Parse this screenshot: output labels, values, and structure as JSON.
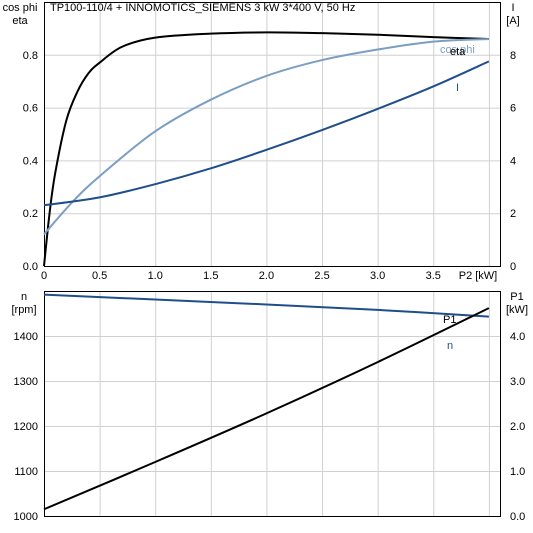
{
  "chart_data": [
    {
      "type": "line",
      "title": "TP100-110/4 + INNOMOTICS_SIEMENS   3 kW   3*400 V, 50 Hz",
      "xlabel": "P2 [kW]",
      "ylabel_left": [
        "cos phi",
        "eta"
      ],
      "ylabel_right": [
        "I",
        "[A]"
      ],
      "xlim": [
        0,
        4.1
      ],
      "ylim_left": [
        0,
        1.0
      ],
      "ylim_right": [
        0,
        10
      ],
      "x_ticks": [
        "0",
        "0.5",
        "1.0",
        "1.5",
        "2.0",
        "2.5",
        "3.0",
        "3.5"
      ],
      "y_left_ticks": [
        "0.0",
        "0.2",
        "0.4",
        "0.6",
        "0.8"
      ],
      "y_right_ticks": [
        "0",
        "2",
        "4",
        "6",
        "8"
      ],
      "grid": true,
      "series": [
        {
          "name": "eta",
          "axis": "left",
          "color": "#000000",
          "x": [
            0,
            0.05,
            0.1,
            0.2,
            0.3,
            0.4,
            0.5,
            0.7,
            1.0,
            1.5,
            2.0,
            2.5,
            3.0,
            3.5,
            4.0
          ],
          "y": [
            0,
            0.2,
            0.35,
            0.55,
            0.66,
            0.73,
            0.77,
            0.83,
            0.865,
            0.88,
            0.885,
            0.882,
            0.876,
            0.867,
            0.86
          ]
        },
        {
          "name": "cos phi",
          "axis": "left",
          "color": "#7b9ec3",
          "x": [
            0,
            0.25,
            0.5,
            1.0,
            1.5,
            2.0,
            2.5,
            3.0,
            3.5,
            4.0
          ],
          "y": [
            0.12,
            0.24,
            0.34,
            0.51,
            0.63,
            0.72,
            0.78,
            0.82,
            0.85,
            0.86
          ]
        },
        {
          "name": "I",
          "axis": "right",
          "color": "#1f4e8c",
          "x": [
            0,
            0.5,
            1.0,
            1.5,
            2.0,
            2.5,
            3.0,
            3.5,
            4.0
          ],
          "y": [
            2.3,
            2.6,
            3.1,
            3.7,
            4.4,
            5.15,
            5.95,
            6.8,
            7.75
          ]
        }
      ]
    },
    {
      "type": "line",
      "ylabel_left": [
        "n",
        "[rpm]"
      ],
      "ylabel_right": [
        "P1",
        "[kW]"
      ],
      "xlim": [
        0,
        4.1
      ],
      "ylim_left": [
        1000,
        1500
      ],
      "ylim_right": [
        0,
        5.0
      ],
      "y_left_ticks": [
        "1000",
        "1100",
        "1200",
        "1300",
        "1400"
      ],
      "y_right_ticks": [
        "0.0",
        "1.0",
        "2.0",
        "3.0",
        "4.0"
      ],
      "grid": true,
      "series": [
        {
          "name": "n",
          "axis": "left",
          "color": "#1f4e8c",
          "x": [
            0,
            1.0,
            2.0,
            3.0,
            4.0
          ],
          "y": [
            1492,
            1481,
            1470,
            1458,
            1443
          ]
        },
        {
          "name": "P1",
          "axis": "right",
          "color": "#000000",
          "x": [
            0,
            1.0,
            2.0,
            3.0,
            4.0
          ],
          "y": [
            0.15,
            1.2,
            2.28,
            3.42,
            4.62
          ]
        }
      ]
    }
  ]
}
